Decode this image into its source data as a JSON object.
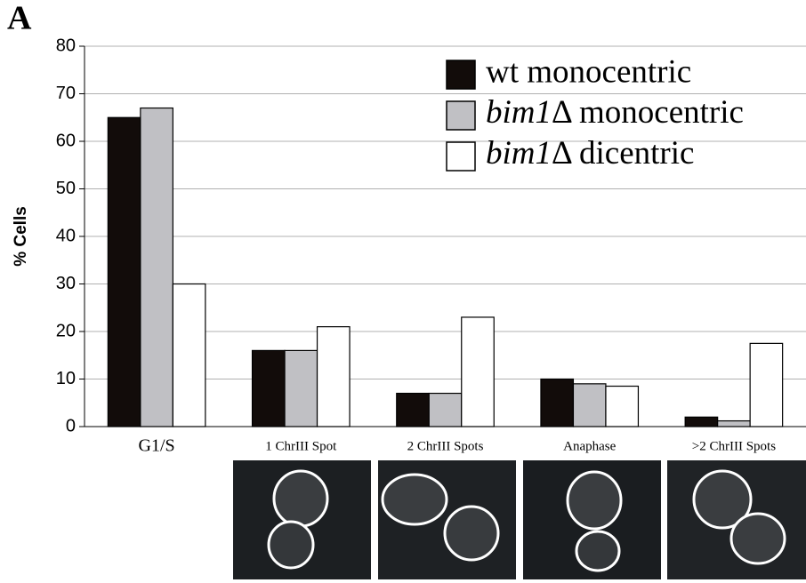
{
  "chart_data": {
    "type": "bar",
    "panel_label": "A",
    "y_label": "% Cells",
    "categories": [
      "G1/S",
      "1 ChrIII Spot",
      "2 ChrIII Spots",
      "Anaphase",
      ">2 ChrIII Spots"
    ],
    "series": [
      {
        "name": "wt monocentric",
        "color": "#120c0a",
        "values": [
          65,
          16,
          7,
          10,
          2
        ]
      },
      {
        "name": "bim1Δ monocentric",
        "color": "#c0c0c4",
        "values": [
          67,
          16,
          7,
          9,
          1.2
        ]
      },
      {
        "name": "bim1Δ dicentric",
        "color": "#ffffff",
        "values": [
          30,
          21,
          23,
          8.5,
          17.5
        ]
      }
    ],
    "ylim": [
      0,
      80
    ],
    "yticks": [
      0,
      10,
      20,
      30,
      40,
      50,
      60,
      70,
      80
    ],
    "grid": true
  }
}
